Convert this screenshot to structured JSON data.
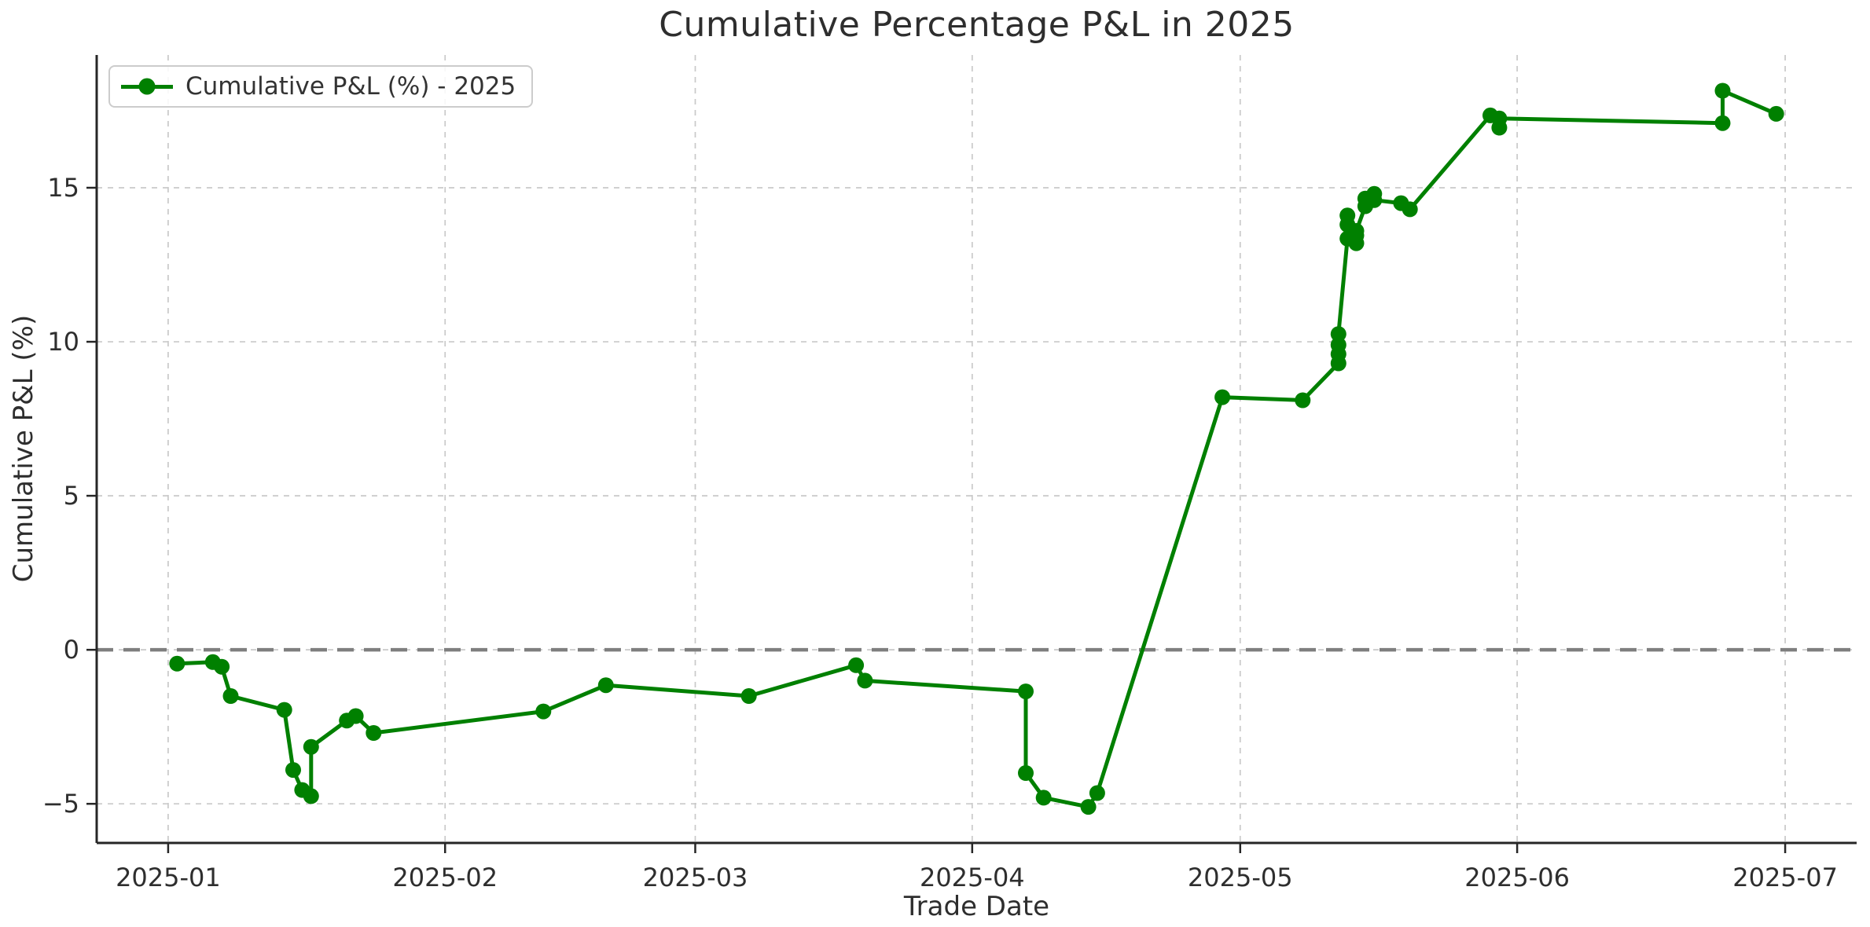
{
  "chart_data": {
    "type": "line",
    "title": "Cumulative Percentage P&L in 2025",
    "xlabel": "Trade Date",
    "ylabel": "Cumulative P&L (%)",
    "grid": true,
    "legend": {
      "position": "upper-left",
      "entries": [
        {
          "label": "Cumulative P&L (%) - 2025",
          "color": "#008000",
          "marker": "circle"
        }
      ]
    },
    "colors": {
      "line": "#008000",
      "grid": "#c9c9c9",
      "axis": "#262626",
      "zero_line": "#7f7f7f",
      "background": "#ffffff",
      "text": "#2e2e2e"
    },
    "xlim": [
      "2024-12-24",
      "2025-07-09"
    ],
    "ylim": [
      -6.27,
      19.31
    ],
    "x_ticks": [
      {
        "date": "2025-01-01",
        "label": "2025-01"
      },
      {
        "date": "2025-02-01",
        "label": "2025-02"
      },
      {
        "date": "2025-03-01",
        "label": "2025-03"
      },
      {
        "date": "2025-04-01",
        "label": "2025-04"
      },
      {
        "date": "2025-05-01",
        "label": "2025-05"
      },
      {
        "date": "2025-06-01",
        "label": "2025-06"
      },
      {
        "date": "2025-07-01",
        "label": "2025-07"
      }
    ],
    "y_ticks": [
      {
        "value": -5,
        "label": "−5"
      },
      {
        "value": 0,
        "label": "0"
      },
      {
        "value": 5,
        "label": "5"
      },
      {
        "value": 10,
        "label": "10"
      },
      {
        "value": 15,
        "label": "15"
      }
    ],
    "zero_line": {
      "value": 0,
      "style": "dashed",
      "color": "#7f7f7f"
    },
    "series": [
      {
        "name": "Cumulative P&L (%) - 2025",
        "color": "#008000",
        "marker": "circle",
        "points": [
          [
            "2025-01-02",
            -0.45
          ],
          [
            "2025-01-06",
            -0.4
          ],
          [
            "2025-01-07",
            -0.55
          ],
          [
            "2025-01-08",
            -1.5
          ],
          [
            "2025-01-14",
            -1.95
          ],
          [
            "2025-01-15",
            -3.9
          ],
          [
            "2025-01-16",
            -4.55
          ],
          [
            "2025-01-17",
            -4.75
          ],
          [
            "2025-01-17",
            -3.15
          ],
          [
            "2025-01-21",
            -2.3
          ],
          [
            "2025-01-22",
            -2.15
          ],
          [
            "2025-01-24",
            -2.7
          ],
          [
            "2025-02-12",
            -2.0
          ],
          [
            "2025-02-19",
            -1.15
          ],
          [
            "2025-03-07",
            -1.5
          ],
          [
            "2025-03-19",
            -0.5
          ],
          [
            "2025-03-20",
            -1.0
          ],
          [
            "2025-04-07",
            -1.35
          ],
          [
            "2025-04-07",
            -4.0
          ],
          [
            "2025-04-09",
            -4.8
          ],
          [
            "2025-04-14",
            -5.1
          ],
          [
            "2025-04-15",
            -4.65
          ],
          [
            "2025-04-29",
            8.2
          ],
          [
            "2025-05-08",
            8.1
          ],
          [
            "2025-05-12",
            9.3
          ],
          [
            "2025-05-12",
            9.6
          ],
          [
            "2025-05-12",
            9.9
          ],
          [
            "2025-05-12",
            10.25
          ],
          [
            "2025-05-13",
            13.35
          ],
          [
            "2025-05-13",
            13.8
          ],
          [
            "2025-05-13",
            14.1
          ],
          [
            "2025-05-14",
            13.2
          ],
          [
            "2025-05-14",
            13.45
          ],
          [
            "2025-05-14",
            13.6
          ],
          [
            "2025-05-15",
            14.4
          ],
          [
            "2025-05-15",
            14.65
          ],
          [
            "2025-05-16",
            14.8
          ],
          [
            "2025-05-16",
            14.6
          ],
          [
            "2025-05-19",
            14.5
          ],
          [
            "2025-05-20",
            14.3
          ],
          [
            "2025-05-29",
            17.35
          ],
          [
            "2025-05-30",
            16.95
          ],
          [
            "2025-05-30",
            17.25
          ],
          [
            "2025-06-24",
            17.1
          ],
          [
            "2025-06-24",
            18.15
          ],
          [
            "2025-06-30",
            17.4
          ]
        ]
      }
    ]
  }
}
